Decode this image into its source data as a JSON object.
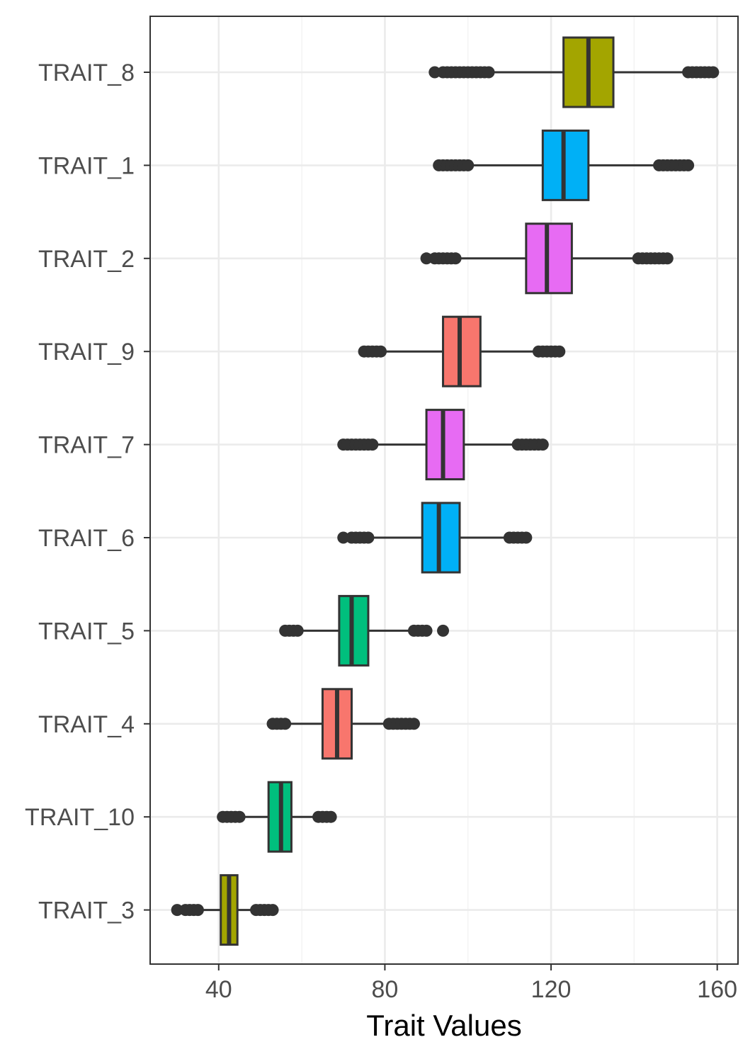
{
  "chart_data": {
    "type": "boxplot",
    "orientation": "horizontal",
    "xlabel": "Trait Values",
    "ylabel": "",
    "xlim": [
      23.5,
      165
    ],
    "xticks": [
      40,
      80,
      120,
      160
    ],
    "grid": true,
    "legend": "none",
    "series": [
      {
        "name": "TRAIT_8",
        "color": "#A3A500",
        "min": 106,
        "q1": 123,
        "median": 129,
        "q3": 135,
        "max": 153,
        "outliers": [
          92,
          94,
          95,
          96,
          97,
          98,
          99,
          100,
          101,
          102,
          103,
          104,
          105,
          153,
          154,
          155,
          156,
          157,
          158,
          159
        ]
      },
      {
        "name": "TRAIT_1",
        "color": "#00B0F6",
        "min": 101,
        "q1": 118,
        "median": 123,
        "q3": 129,
        "max": 146,
        "outliers": [
          93,
          94,
          95,
          96,
          97,
          98,
          99,
          100,
          146,
          147,
          148,
          149,
          150,
          151,
          152,
          153
        ]
      },
      {
        "name": "TRAIT_2",
        "color": "#E76BF3",
        "min": 98,
        "q1": 114,
        "median": 119,
        "q3": 125,
        "max": 141,
        "outliers": [
          90,
          92,
          93,
          94,
          95,
          96,
          97,
          141,
          142,
          143,
          144,
          145,
          146,
          147,
          148
        ]
      },
      {
        "name": "TRAIT_9",
        "color": "#F8766D",
        "min": 79,
        "q1": 94,
        "median": 98,
        "q3": 103,
        "max": 117,
        "outliers": [
          75,
          76,
          77,
          78,
          79,
          117,
          118,
          119,
          120,
          121,
          122
        ]
      },
      {
        "name": "TRAIT_7",
        "color": "#E76BF3",
        "min": 77,
        "q1": 90,
        "median": 94,
        "q3": 99,
        "max": 112,
        "outliers": [
          70,
          71,
          72,
          73,
          74,
          75,
          76,
          77,
          112,
          113,
          114,
          115,
          116,
          117,
          118
        ]
      },
      {
        "name": "TRAIT_6",
        "color": "#00B0F6",
        "min": 76,
        "q1": 89,
        "median": 93,
        "q3": 98,
        "max": 110,
        "outliers": [
          70,
          72,
          73,
          74,
          75,
          76,
          110,
          111,
          112,
          113,
          114
        ]
      },
      {
        "name": "TRAIT_5",
        "color": "#00BF7D",
        "min": 59,
        "q1": 69,
        "median": 72,
        "q3": 76,
        "max": 87,
        "outliers": [
          56,
          57,
          58,
          59,
          87,
          88,
          89,
          90,
          94
        ]
      },
      {
        "name": "TRAIT_4",
        "color": "#F8766D",
        "min": 56,
        "q1": 65,
        "median": 68.5,
        "q3": 72,
        "max": 81,
        "outliers": [
          53,
          54,
          55,
          56,
          81,
          82,
          83,
          84,
          85,
          86,
          87
        ]
      },
      {
        "name": "TRAIT_10",
        "color": "#00BF7D",
        "min": 45,
        "q1": 52,
        "median": 55,
        "q3": 57.5,
        "max": 64,
        "outliers": [
          41,
          42,
          43,
          44,
          45,
          64,
          65,
          66,
          67
        ]
      },
      {
        "name": "TRAIT_3",
        "color": "#A3A500",
        "min": 36,
        "q1": 40.5,
        "median": 42.5,
        "q3": 44.5,
        "max": 49,
        "outliers": [
          30,
          32,
          33,
          34,
          35,
          49,
          50,
          51,
          52,
          53
        ]
      }
    ]
  }
}
